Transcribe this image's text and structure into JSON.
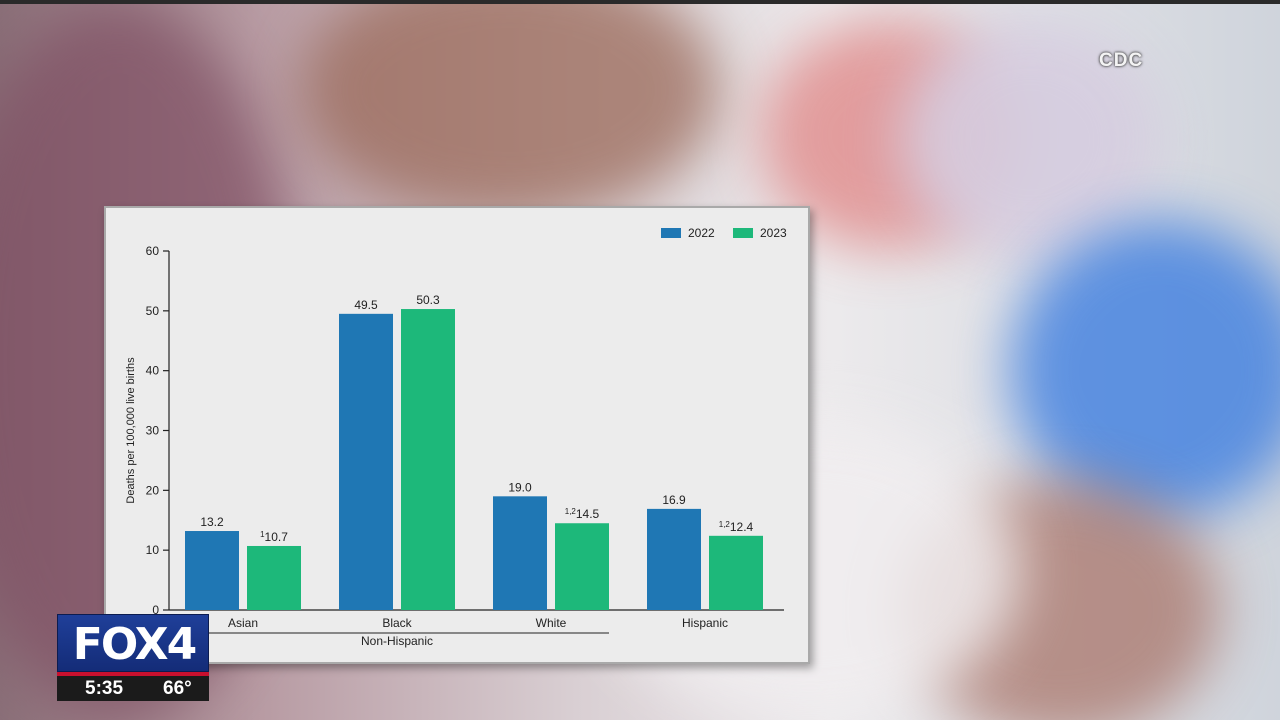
{
  "watermark": "CDC",
  "broadcast": {
    "logo": "FOX4",
    "time": "5:35",
    "temperature": "66°",
    "colors": {
      "logo_blue": "#1f3f99",
      "stripe_red": "#c8102e",
      "info_bar": "#1b1b1b"
    }
  },
  "chart_data": {
    "type": "bar",
    "title": "",
    "xlabel": "",
    "ylabel": "Deaths per 100,000 live births",
    "ylim": [
      0,
      60
    ],
    "yticks": [
      0,
      10,
      20,
      30,
      40,
      50,
      60
    ],
    "categories": [
      "Asian",
      "Black",
      "White",
      "Hispanic"
    ],
    "group_label": {
      "text": "Non-Hispanic",
      "covers": [
        "Asian",
        "Black",
        "White"
      ]
    },
    "legend_position": "top-right",
    "grid": false,
    "series": [
      {
        "name": "2022",
        "color": "#1f77b4",
        "values": [
          13.2,
          49.5,
          19.0,
          16.9
        ],
        "labels": [
          {
            "sup": "",
            "text": "13.2"
          },
          {
            "sup": "",
            "text": "49.5"
          },
          {
            "sup": "",
            "text": "19.0"
          },
          {
            "sup": "",
            "text": "16.9"
          }
        ]
      },
      {
        "name": "2023",
        "color": "#1db87a",
        "values": [
          10.7,
          50.3,
          14.5,
          12.4
        ],
        "labels": [
          {
            "sup": "1",
            "text": "10.7"
          },
          {
            "sup": "",
            "text": "50.3"
          },
          {
            "sup": "1,2",
            "text": "14.5"
          },
          {
            "sup": "1,2",
            "text": "12.4"
          }
        ]
      }
    ]
  }
}
